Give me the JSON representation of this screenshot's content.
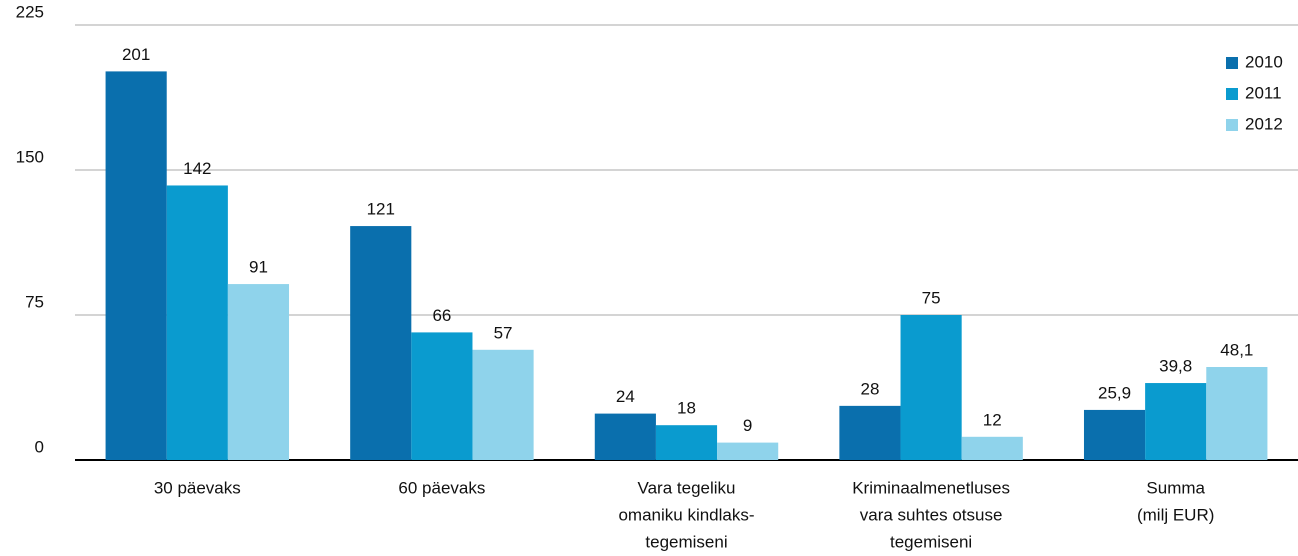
{
  "chart_data": {
    "type": "bar",
    "categories": [
      [
        "30 päevaks"
      ],
      [
        "60 päevaks"
      ],
      [
        "Vara tegeliku",
        "omaniku kindlaks-",
        "tegemiseni"
      ],
      [
        "Kriminaalmenetluses",
        "vara suhtes otsuse",
        "tegemiseni"
      ],
      [
        "Summa",
        "(milj EUR)"
      ]
    ],
    "series": [
      {
        "name": "2010",
        "color": "#0a6fad",
        "values": [
          201,
          121,
          24,
          28,
          25.9
        ],
        "value_labels": [
          "201",
          "121",
          "24",
          "28",
          "25,9"
        ]
      },
      {
        "name": "2011",
        "color": "#0a9bcf",
        "values": [
          142,
          66,
          18,
          75,
          39.8
        ],
        "value_labels": [
          "142",
          "66",
          "18",
          "75",
          "39,8"
        ]
      },
      {
        "name": "2012",
        "color": "#8fd3eb",
        "values": [
          91,
          57,
          9,
          12,
          48.1
        ],
        "value_labels": [
          "91",
          "57",
          "9",
          "12",
          "48,1"
        ]
      }
    ],
    "ylim": [
      0,
      225
    ],
    "yticks": [
      0,
      75,
      150,
      225
    ],
    "grid": true,
    "legend": "top-right"
  }
}
